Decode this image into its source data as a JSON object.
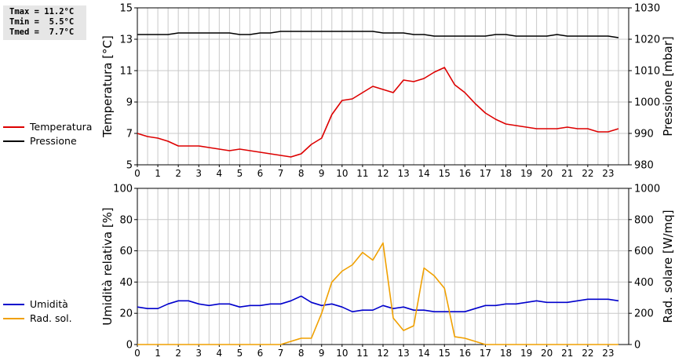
{
  "stats": {
    "tmax": "Tmax = 11.2°C",
    "tmin": "Tmin =  5.5°C",
    "tmed": "Tmed =  7.7°C"
  },
  "legend_top": [
    {
      "label": "Temperatura",
      "color": "#dd0000"
    },
    {
      "label": "Pressione",
      "color": "#000000"
    }
  ],
  "legend_bottom": [
    {
      "label": "Umidità",
      "color": "#0000cc"
    },
    {
      "label": "Rad. sol.",
      "color": "#f0a000"
    }
  ],
  "chart_data": [
    {
      "type": "line",
      "xlabel": "",
      "xlim": [
        0,
        24
      ],
      "x_ticks": [
        "0",
        "1",
        "2",
        "3",
        "4",
        "5",
        "6",
        "7",
        "8",
        "9",
        "10",
        "11",
        "12",
        "13",
        "14",
        "15",
        "16",
        "17",
        "18",
        "19",
        "20",
        "21",
        "22",
        "23"
      ],
      "grid": true,
      "left_axis": {
        "label": "Temperatura [°C]",
        "ylim": [
          5,
          15
        ],
        "ticks": [
          "5",
          "7",
          "9",
          "11",
          "13",
          "15"
        ]
      },
      "right_axis": {
        "label": "Pressione [mbar]",
        "ylim": [
          980,
          1030
        ],
        "ticks": [
          "980",
          "990",
          "1000",
          "1010",
          "1020",
          "1030"
        ]
      },
      "series": [
        {
          "name": "Temperatura",
          "axis": "left",
          "color": "#dd0000",
          "x": [
            0,
            0.5,
            1,
            1.5,
            2,
            2.5,
            3,
            3.5,
            4,
            4.5,
            5,
            5.5,
            6,
            6.5,
            7,
            7.5,
            8,
            8.5,
            9,
            9.5,
            10,
            10.5,
            11,
            11.5,
            12,
            12.5,
            13,
            13.5,
            14,
            14.5,
            15,
            15.5,
            16,
            16.5,
            17,
            17.5,
            18,
            18.5,
            19,
            19.5,
            20,
            20.5,
            21,
            21.5,
            22,
            22.5,
            23,
            23.5
          ],
          "values": [
            7.0,
            6.8,
            6.7,
            6.5,
            6.2,
            6.2,
            6.2,
            6.1,
            6.0,
            5.9,
            6.0,
            5.9,
            5.8,
            5.7,
            5.6,
            5.5,
            5.7,
            6.3,
            6.7,
            8.2,
            9.1,
            9.2,
            9.6,
            10.0,
            9.8,
            9.6,
            10.4,
            10.3,
            10.5,
            10.9,
            11.2,
            10.1,
            9.6,
            8.9,
            8.3,
            7.9,
            7.6,
            7.5,
            7.4,
            7.3,
            7.3,
            7.3,
            7.4,
            7.3,
            7.3,
            7.1,
            7.1,
            7.3
          ]
        },
        {
          "name": "Pressione",
          "axis": "right",
          "color": "#000000",
          "x": [
            0,
            0.5,
            1,
            1.5,
            2,
            2.5,
            3,
            3.5,
            4,
            4.5,
            5,
            5.5,
            6,
            6.5,
            7,
            7.5,
            8,
            8.5,
            9,
            9.5,
            10,
            10.5,
            11,
            11.5,
            12,
            12.5,
            13,
            13.5,
            14,
            14.5,
            15,
            15.5,
            16,
            16.5,
            17,
            17.5,
            18,
            18.5,
            19,
            19.5,
            20,
            20.5,
            21,
            21.5,
            22,
            22.5,
            23,
            23.5
          ],
          "values": [
            1021.5,
            1021.5,
            1021.5,
            1021.5,
            1022.0,
            1022.0,
            1022.0,
            1022.0,
            1022.0,
            1022.0,
            1021.5,
            1021.5,
            1022.0,
            1022.0,
            1022.5,
            1022.5,
            1022.5,
            1022.5,
            1022.5,
            1022.5,
            1022.5,
            1022.5,
            1022.5,
            1022.5,
            1022.0,
            1022.0,
            1022.0,
            1021.5,
            1021.5,
            1021.0,
            1021.0,
            1021.0,
            1021.0,
            1021.0,
            1021.0,
            1021.5,
            1021.5,
            1021.0,
            1021.0,
            1021.0,
            1021.0,
            1021.5,
            1021.0,
            1021.0,
            1021.0,
            1021.0,
            1021.0,
            1020.5
          ]
        }
      ]
    },
    {
      "type": "line",
      "xlabel": "",
      "xlim": [
        0,
        24
      ],
      "x_ticks": [
        "0",
        "1",
        "2",
        "3",
        "4",
        "5",
        "6",
        "7",
        "8",
        "9",
        "10",
        "11",
        "12",
        "13",
        "14",
        "15",
        "16",
        "17",
        "18",
        "19",
        "20",
        "21",
        "22",
        "23"
      ],
      "grid": true,
      "left_axis": {
        "label": "Umidità relativa [%]",
        "ylim": [
          0,
          100
        ],
        "ticks": [
          "0",
          "20",
          "40",
          "60",
          "80",
          "100"
        ]
      },
      "right_axis": {
        "label": "Rad. solare [W/mq]",
        "ylim": [
          0,
          1000
        ],
        "ticks": [
          "0",
          "200",
          "400",
          "600",
          "800",
          "1000"
        ]
      },
      "series": [
        {
          "name": "Umidità",
          "axis": "left",
          "color": "#0000cc",
          "x": [
            0,
            0.5,
            1,
            1.5,
            2,
            2.5,
            3,
            3.5,
            4,
            4.5,
            5,
            5.5,
            6,
            6.5,
            7,
            7.5,
            8,
            8.5,
            9,
            9.5,
            10,
            10.5,
            11,
            11.5,
            12,
            12.5,
            13,
            13.5,
            14,
            14.5,
            15,
            15.5,
            16,
            16.5,
            17,
            17.5,
            18,
            18.5,
            19,
            19.5,
            20,
            20.5,
            21,
            21.5,
            22,
            22.5,
            23,
            23.5
          ],
          "values": [
            24,
            23,
            23,
            26,
            28,
            28,
            26,
            25,
            26,
            26,
            24,
            25,
            25,
            26,
            26,
            28,
            31,
            27,
            25,
            26,
            24,
            21,
            22,
            22,
            25,
            23,
            24,
            22,
            22,
            21,
            21,
            21,
            21,
            23,
            25,
            25,
            26,
            26,
            27,
            28,
            27,
            27,
            27,
            28,
            29,
            29,
            29,
            28
          ]
        },
        {
          "name": "Rad. sol.",
          "axis": "right",
          "color": "#f0a000",
          "x": [
            0,
            0.5,
            1,
            1.5,
            2,
            2.5,
            3,
            3.5,
            4,
            4.5,
            5,
            5.5,
            6,
            6.5,
            7,
            7.5,
            8,
            8.5,
            9,
            9.5,
            10,
            10.5,
            11,
            11.5,
            12,
            12.5,
            13,
            13.5,
            14,
            14.5,
            15,
            15.5,
            16,
            16.5,
            17,
            17.5,
            18,
            18.5,
            19,
            19.5,
            20,
            20.5,
            21,
            21.5,
            22,
            22.5,
            23,
            23.5
          ],
          "values": [
            0,
            0,
            0,
            0,
            0,
            0,
            0,
            0,
            0,
            0,
            0,
            0,
            0,
            0,
            0,
            20,
            40,
            40,
            200,
            400,
            470,
            510,
            590,
            540,
            650,
            170,
            90,
            120,
            490,
            440,
            360,
            50,
            40,
            20,
            0,
            0,
            0,
            0,
            0,
            0,
            0,
            0,
            0,
            0,
            0,
            0,
            0,
            0
          ]
        }
      ]
    }
  ]
}
